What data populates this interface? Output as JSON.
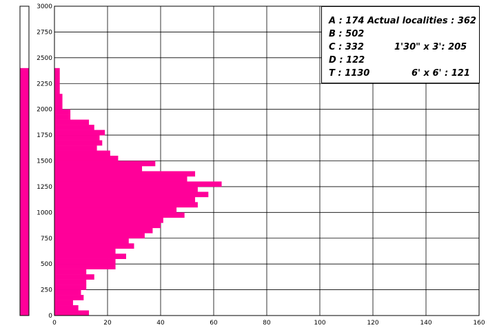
{
  "chart_data": {
    "type": "bar",
    "orientation": "horizontal",
    "ylim": [
      0,
      3000
    ],
    "xlim": [
      0,
      160
    ],
    "y_ticks": [
      "0",
      "250",
      "500",
      "750",
      "1000",
      "1250",
      "1500",
      "1750",
      "2000",
      "2250",
      "2500",
      "2750",
      "3000"
    ],
    "x_ticks": [
      "0",
      "20",
      "40",
      "60",
      "80",
      "100",
      "120",
      "140",
      "160"
    ],
    "grid": true,
    "bar_color": "#ff0099",
    "bin_width": 50,
    "bins": [
      {
        "y": 0,
        "v": 13
      },
      {
        "y": 50,
        "v": 9
      },
      {
        "y": 100,
        "v": 7
      },
      {
        "y": 150,
        "v": 11
      },
      {
        "y": 200,
        "v": 10
      },
      {
        "y": 250,
        "v": 12
      },
      {
        "y": 300,
        "v": 12
      },
      {
        "y": 350,
        "v": 15
      },
      {
        "y": 400,
        "v": 12
      },
      {
        "y": 450,
        "v": 23
      },
      {
        "y": 500,
        "v": 23
      },
      {
        "y": 550,
        "v": 27
      },
      {
        "y": 600,
        "v": 23
      },
      {
        "y": 650,
        "v": 30
      },
      {
        "y": 700,
        "v": 28
      },
      {
        "y": 750,
        "v": 34
      },
      {
        "y": 800,
        "v": 37
      },
      {
        "y": 850,
        "v": 40
      },
      {
        "y": 900,
        "v": 41
      },
      {
        "y": 950,
        "v": 49
      },
      {
        "y": 1000,
        "v": 46
      },
      {
        "y": 1050,
        "v": 54
      },
      {
        "y": 1100,
        "v": 53
      },
      {
        "y": 1150,
        "v": 58
      },
      {
        "y": 1200,
        "v": 54
      },
      {
        "y": 1250,
        "v": 63
      },
      {
        "y": 1300,
        "v": 50
      },
      {
        "y": 1350,
        "v": 53
      },
      {
        "y": 1400,
        "v": 33
      },
      {
        "y": 1450,
        "v": 38
      },
      {
        "y": 1500,
        "v": 24
      },
      {
        "y": 1550,
        "v": 21
      },
      {
        "y": 1600,
        "v": 16
      },
      {
        "y": 1650,
        "v": 18
      },
      {
        "y": 1700,
        "v": 17
      },
      {
        "y": 1750,
        "v": 19
      },
      {
        "y": 1800,
        "v": 15
      },
      {
        "y": 1850,
        "v": 13
      },
      {
        "y": 1900,
        "v": 6
      },
      {
        "y": 1950,
        "v": 6
      },
      {
        "y": 2000,
        "v": 3
      },
      {
        "y": 2050,
        "v": 3
      },
      {
        "y": 2100,
        "v": 3
      },
      {
        "y": 2150,
        "v": 2
      },
      {
        "y": 2200,
        "v": 2
      },
      {
        "y": 2250,
        "v": 2
      },
      {
        "y": 2300,
        "v": 2
      },
      {
        "y": 2350,
        "v": 2
      }
    ],
    "side_bar": {
      "color": "#ff0099",
      "max": 2400
    }
  },
  "legend": {
    "line1": "A :  174  Actual localities :  362",
    "line2": "B :  502",
    "line3a": "C :  332",
    "line3b": "1'30\" x 3':  205",
    "line4": "D :  122",
    "line5a": "T :  1130",
    "line5b": "6' x 6' :  121"
  }
}
